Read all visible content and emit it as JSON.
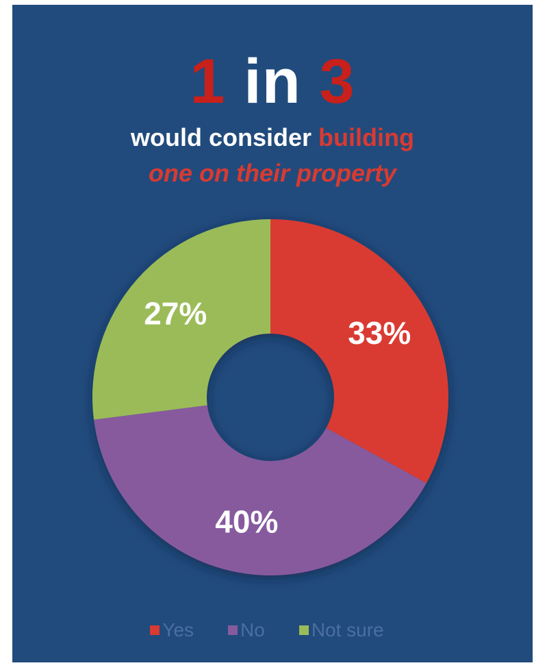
{
  "headline": {
    "part1": "1",
    "part2": " in ",
    "part3": "3"
  },
  "subtitle": {
    "line1_white": "would consider ",
    "line1_red": "building",
    "line2": "one on their property"
  },
  "colors": {
    "background": "#214b7c",
    "yes": "#d93a32",
    "no": "#875a9e",
    "not_sure": "#9bbb59",
    "legend_text": "#4a6fa0"
  },
  "chart_data": {
    "type": "pie",
    "variant": "donut",
    "categories": [
      "Yes",
      "No",
      "Not sure"
    ],
    "values": [
      33,
      40,
      27
    ],
    "data_labels": [
      "33%",
      "40%",
      "27%"
    ],
    "legend_position": "bottom"
  }
}
